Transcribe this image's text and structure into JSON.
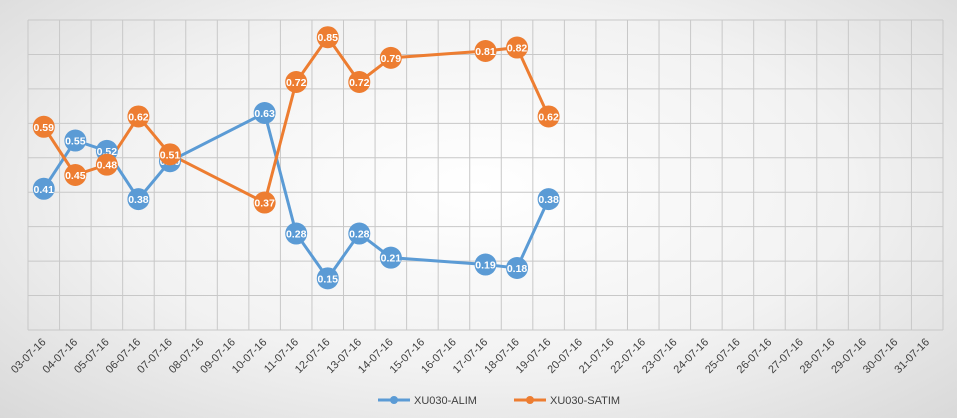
{
  "chart_data": {
    "type": "line",
    "title": "",
    "xlabel": "",
    "ylabel": "",
    "x": [
      "03-07-16",
      "04-07-16",
      "05-07-16",
      "06-07-16",
      "07-07-16",
      "08-07-16",
      "09-07-16",
      "10-07-16",
      "11-07-16",
      "12-07-16",
      "13-07-16",
      "14-07-16",
      "15-07-16",
      "16-07-16",
      "17-07-16",
      "18-07-16",
      "19-07-16",
      "20-07-16",
      "21-07-16",
      "22-07-16",
      "23-07-16",
      "24-07-16",
      "25-07-16",
      "26-07-16",
      "27-07-16",
      "28-07-16",
      "29-07-16",
      "30-07-16",
      "31-07-16"
    ],
    "ylim": [
      0,
      0.9
    ],
    "grid": true,
    "legend": "bottom",
    "series": [
      {
        "name": "XU030-ALIM",
        "color": "#5B9BD5",
        "points": [
          {
            "x": "03-07-16",
            "y": 0.41,
            "label": "0.41"
          },
          {
            "x": "04-07-16",
            "y": 0.55,
            "label": "0.55"
          },
          {
            "x": "05-07-16",
            "y": 0.52,
            "label": "0.52"
          },
          {
            "x": "06-07-16",
            "y": 0.38,
            "label": "0.38"
          },
          {
            "x": "07-07-16",
            "y": 0.49,
            "label": "0.49"
          },
          {
            "x": "10-07-16",
            "y": 0.63,
            "label": "0.63"
          },
          {
            "x": "11-07-16",
            "y": 0.28,
            "label": "0.28"
          },
          {
            "x": "12-07-16",
            "y": 0.15,
            "label": "0.15"
          },
          {
            "x": "13-07-16",
            "y": 0.28,
            "label": "0.28"
          },
          {
            "x": "14-07-16",
            "y": 0.21,
            "label": "0.21"
          },
          {
            "x": "17-07-16",
            "y": 0.19,
            "label": "0.19"
          },
          {
            "x": "18-07-16",
            "y": 0.18,
            "label": "0.18"
          },
          {
            "x": "19-07-16",
            "y": 0.38,
            "label": "0.38"
          }
        ]
      },
      {
        "name": "XU030-SATIM",
        "color": "#ED7D31",
        "points": [
          {
            "x": "03-07-16",
            "y": 0.59,
            "label": "0.59"
          },
          {
            "x": "04-07-16",
            "y": 0.45,
            "label": "0.45"
          },
          {
            "x": "05-07-16",
            "y": 0.48,
            "label": "0.48"
          },
          {
            "x": "06-07-16",
            "y": 0.62,
            "label": "0.62"
          },
          {
            "x": "07-07-16",
            "y": 0.51,
            "label": "0.51"
          },
          {
            "x": "10-07-16",
            "y": 0.37,
            "label": "0.37"
          },
          {
            "x": "11-07-16",
            "y": 0.72,
            "label": "0.72"
          },
          {
            "x": "12-07-16",
            "y": 0.85,
            "label": "0.85"
          },
          {
            "x": "13-07-16",
            "y": 0.72,
            "label": "0.72"
          },
          {
            "x": "14-07-16",
            "y": 0.79,
            "label": "0.79"
          },
          {
            "x": "17-07-16",
            "y": 0.81,
            "label": "0.81"
          },
          {
            "x": "18-07-16",
            "y": 0.82,
            "label": "0.82"
          },
          {
            "x": "19-07-16",
            "y": 0.62,
            "label": "0.62"
          }
        ]
      }
    ]
  }
}
